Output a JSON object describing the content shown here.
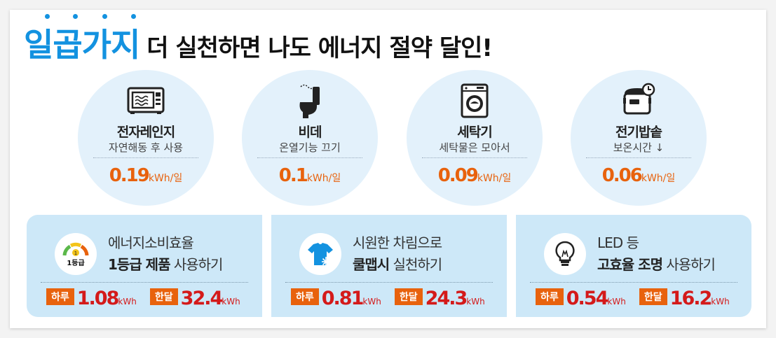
{
  "title": {
    "highlight": "일곱가지",
    "rest": "더 실천하면 나도 에너지 절약 달인!"
  },
  "tips": [
    {
      "icon": "microwave-icon",
      "name": "전자레인지",
      "desc": "자연해동 후 사용",
      "value": "0.19",
      "unit": "kWh/일"
    },
    {
      "icon": "bidet-icon",
      "name": "비데",
      "desc": "온열기능 끄기",
      "value": "0.1",
      "unit": "kWh/일"
    },
    {
      "icon": "washing-machine-icon",
      "name": "세탁기",
      "desc": "세탁물은 모아서",
      "value": "0.09",
      "unit": "kWh/일"
    },
    {
      "icon": "rice-cooker-icon",
      "name": "전기밥솥",
      "desc": "보온시간 ↓",
      "value": "0.06",
      "unit": "kWh/일"
    }
  ],
  "panels": [
    {
      "icon": "energy-grade-gauge-icon",
      "badge_label": "1등급",
      "line1": "에너지소비효율",
      "line2_bold": "1등급 제품",
      "line2_rest": " 사용하기",
      "day_label": "하루",
      "day_value": "1.08",
      "day_unit": "kWh",
      "month_label": "한달",
      "month_value": "32.4",
      "month_unit": "kWh"
    },
    {
      "icon": "cool-shirt-icon",
      "line1": "시원한 차림으로",
      "line2_bold": "쿨맵시",
      "line2_rest": " 실천하기",
      "day_label": "하루",
      "day_value": "0.81",
      "day_unit": "kWh",
      "month_label": "한달",
      "month_value": "24.3",
      "month_unit": "kWh"
    },
    {
      "icon": "led-bulb-icon",
      "line1": "LED 등",
      "line2_bold": "고효율 조명",
      "line2_rest": " 사용하기",
      "day_label": "하루",
      "day_value": "0.54",
      "day_unit": "kWh",
      "month_label": "한달",
      "month_value": "16.2",
      "month_unit": "kWh"
    }
  ],
  "colors": {
    "accent_blue": "#1392e0",
    "value_orange": "#e8620d",
    "stat_red": "#d41a1a",
    "circle_bg": "#e3f1fb",
    "panel_bg": "#cde8f8"
  }
}
